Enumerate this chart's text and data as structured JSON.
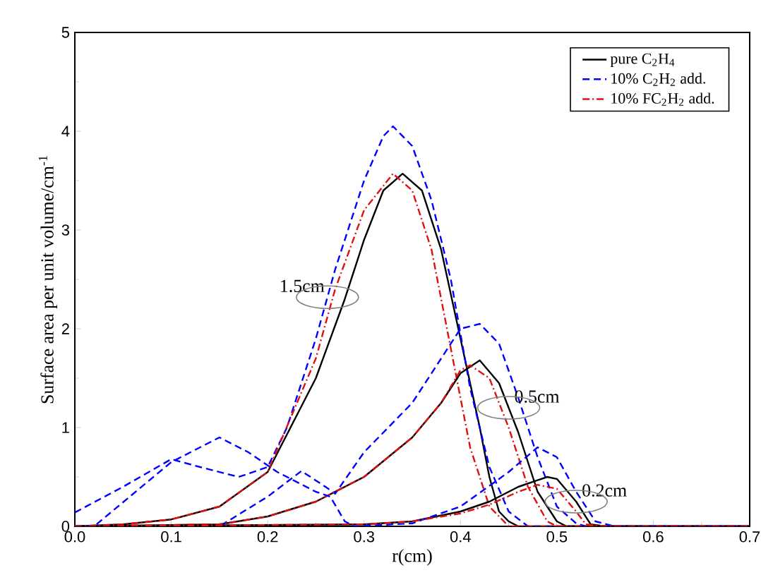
{
  "chart_data": {
    "type": "line",
    "xlabel": "r(cm)",
    "ylabel": "Surface area per unit volume/cm$^{-1}$",
    "xlim": [
      0,
      0.7
    ],
    "ylim": [
      0,
      5
    ],
    "xticks": [
      {
        "value": 0,
        "label": "0.0"
      },
      0.1,
      0.2,
      0.3,
      0.4,
      0.5,
      0.6,
      {
        "value": 0.7,
        "label": "0.7"
      }
    ],
    "yticks": [
      0,
      1,
      2,
      3,
      4,
      5
    ],
    "legend": "top right",
    "grid": false,
    "marker": "none",
    "series": [
      {
        "name": "pure C$_{2}$H$_{4}$",
        "color": "#000000",
        "line_style": "solid",
        "x": [
          0,
          0.05,
          0.1,
          0.15,
          0.2,
          0.25,
          0.28,
          0.3,
          0.32,
          0.34,
          0.36,
          0.38,
          0.4,
          0.42,
          0.43,
          0.44,
          0.45,
          0.46,
          0.7
        ],
        "values": [
          0,
          0.02,
          0.07,
          0.2,
          0.55,
          1.5,
          2.3,
          2.9,
          3.4,
          3.57,
          3.4,
          2.8,
          1.9,
          1.0,
          0.5,
          0.15,
          0.05,
          0,
          0
        ]
      },
      {
        "name": "10% C$_{2}$H$_{2}$ add.",
        "color": "#0000ff",
        "line_style": "dashed",
        "x": [
          0,
          0.05,
          0.1,
          0.13,
          0.17,
          0.2,
          0.22,
          0.25,
          0.27,
          0.3,
          0.32,
          0.33,
          0.35,
          0.37,
          0.39,
          0.41,
          0.43,
          0.45,
          0.47,
          0.7
        ],
        "values": [
          0.14,
          0.4,
          0.68,
          0.6,
          0.5,
          0.6,
          1.0,
          1.9,
          2.6,
          3.5,
          3.95,
          4.05,
          3.85,
          3.3,
          2.5,
          1.4,
          0.6,
          0.15,
          0,
          0
        ]
      },
      {
        "name": "10% FC$_{2}$H$_{2}$ add.",
        "color": "#e01010",
        "line_style": "dashdot",
        "x": [
          0,
          0.05,
          0.1,
          0.15,
          0.2,
          0.25,
          0.27,
          0.3,
          0.33,
          0.35,
          0.37,
          0.39,
          0.41,
          0.43,
          0.45,
          0.7
        ],
        "values": [
          0,
          0.02,
          0.07,
          0.2,
          0.55,
          1.7,
          2.4,
          3.2,
          3.57,
          3.4,
          2.8,
          1.8,
          0.8,
          0.2,
          0,
          0
        ]
      },
      {
        "color": "#000000",
        "line_style": "solid",
        "x": [
          0,
          0.15,
          0.2,
          0.25,
          0.3,
          0.35,
          0.38,
          0.4,
          0.42,
          0.44,
          0.46,
          0.48,
          0.5,
          0.51,
          0.7
        ],
        "values": [
          0,
          0.02,
          0.1,
          0.25,
          0.5,
          0.9,
          1.25,
          1.55,
          1.68,
          1.45,
          0.95,
          0.35,
          0.05,
          0,
          0
        ]
      },
      {
        "color": "#0000ff",
        "line_style": "dashed",
        "x": [
          0,
          0.15,
          0.2,
          0.235,
          0.26,
          0.27,
          0.3,
          0.35,
          0.38,
          0.4,
          0.42,
          0.44,
          0.46,
          0.48,
          0.5,
          0.52,
          0.53,
          0.7
        ],
        "values": [
          0,
          0,
          0.3,
          0.56,
          0.4,
          0.33,
          0.75,
          1.25,
          1.7,
          2.0,
          2.05,
          1.85,
          1.3,
          0.7,
          0.2,
          0.03,
          0,
          0
        ]
      },
      {
        "color": "#e01010",
        "line_style": "dashdot",
        "x": [
          0,
          0.15,
          0.2,
          0.25,
          0.3,
          0.35,
          0.38,
          0.4,
          0.41,
          0.43,
          0.45,
          0.47,
          0.49,
          0.5,
          0.7
        ],
        "values": [
          0,
          0.02,
          0.1,
          0.25,
          0.5,
          0.9,
          1.25,
          1.58,
          1.63,
          1.5,
          1.0,
          0.4,
          0.05,
          0,
          0
        ]
      },
      {
        "color": "#000000",
        "line_style": "solid",
        "x": [
          0,
          0.3,
          0.35,
          0.4,
          0.43,
          0.46,
          0.49,
          0.5,
          0.52,
          0.535,
          0.55,
          0.7
        ],
        "values": [
          0,
          0.02,
          0.05,
          0.15,
          0.25,
          0.4,
          0.5,
          0.48,
          0.25,
          0.02,
          0,
          0
        ]
      },
      {
        "color": "#0000ff",
        "line_style": "dashed",
        "x": [
          0,
          0.02,
          0.1,
          0.15,
          0.18,
          0.21,
          0.25,
          0.265,
          0.28,
          0.29,
          0.35,
          0.4,
          0.45,
          0.48,
          0.5,
          0.52,
          0.54,
          0.56,
          0.7
        ],
        "values": [
          0,
          0,
          0.65,
          0.9,
          0.75,
          0.55,
          0.35,
          0.3,
          0.05,
          0,
          0.03,
          0.2,
          0.55,
          0.8,
          0.7,
          0.35,
          0.05,
          0,
          0
        ]
      },
      {
        "color": "#e01010",
        "line_style": "dashdot",
        "x": [
          0,
          0.3,
          0.35,
          0.4,
          0.43,
          0.46,
          0.48,
          0.5,
          0.52,
          0.53,
          0.55,
          0.7
        ],
        "values": [
          0,
          0.02,
          0.05,
          0.13,
          0.22,
          0.35,
          0.42,
          0.38,
          0.15,
          0.02,
          0,
          0
        ]
      }
    ],
    "annotations": [
      {
        "text": "1.5cm",
        "x": 0.262,
        "y": 2.32
      },
      {
        "text": "0.5cm",
        "x": 0.45,
        "y": 1.2
      },
      {
        "text": "0.2cm",
        "x": 0.52,
        "y": 0.25
      }
    ]
  }
}
